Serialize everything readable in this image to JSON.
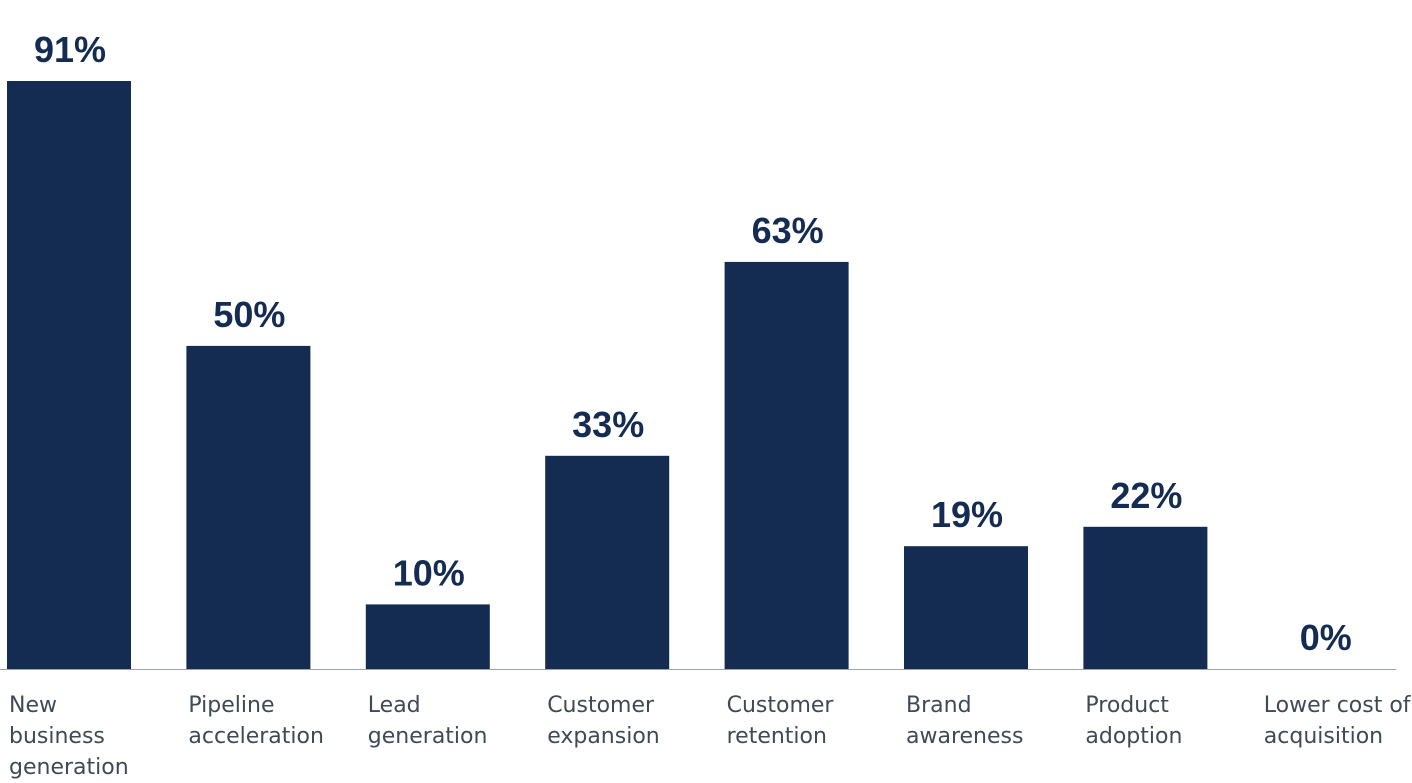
{
  "chart_data": {
    "type": "bar",
    "categories": [
      "New\nbusiness\ngeneration",
      "Pipeline\nacceleration",
      "Lead\ngeneration",
      "Customer\nexpansion",
      "Customer\nretention",
      "Brand\nawareness",
      "Product\nadoption",
      "Lower cost of\nacquisition"
    ],
    "values": [
      91,
      50,
      10,
      33,
      63,
      19,
      22,
      0
    ],
    "value_labels": [
      "91%",
      "50%",
      "10%",
      "33%",
      "63%",
      "19%",
      "22%",
      "0%"
    ],
    "title": "",
    "xlabel": "",
    "ylabel": "",
    "ylim": [
      0,
      91
    ],
    "grid": false,
    "legend": "none",
    "bar_color": "#142b52",
    "label_color": "#142b52",
    "axis_color": "#9aa3ad"
  }
}
